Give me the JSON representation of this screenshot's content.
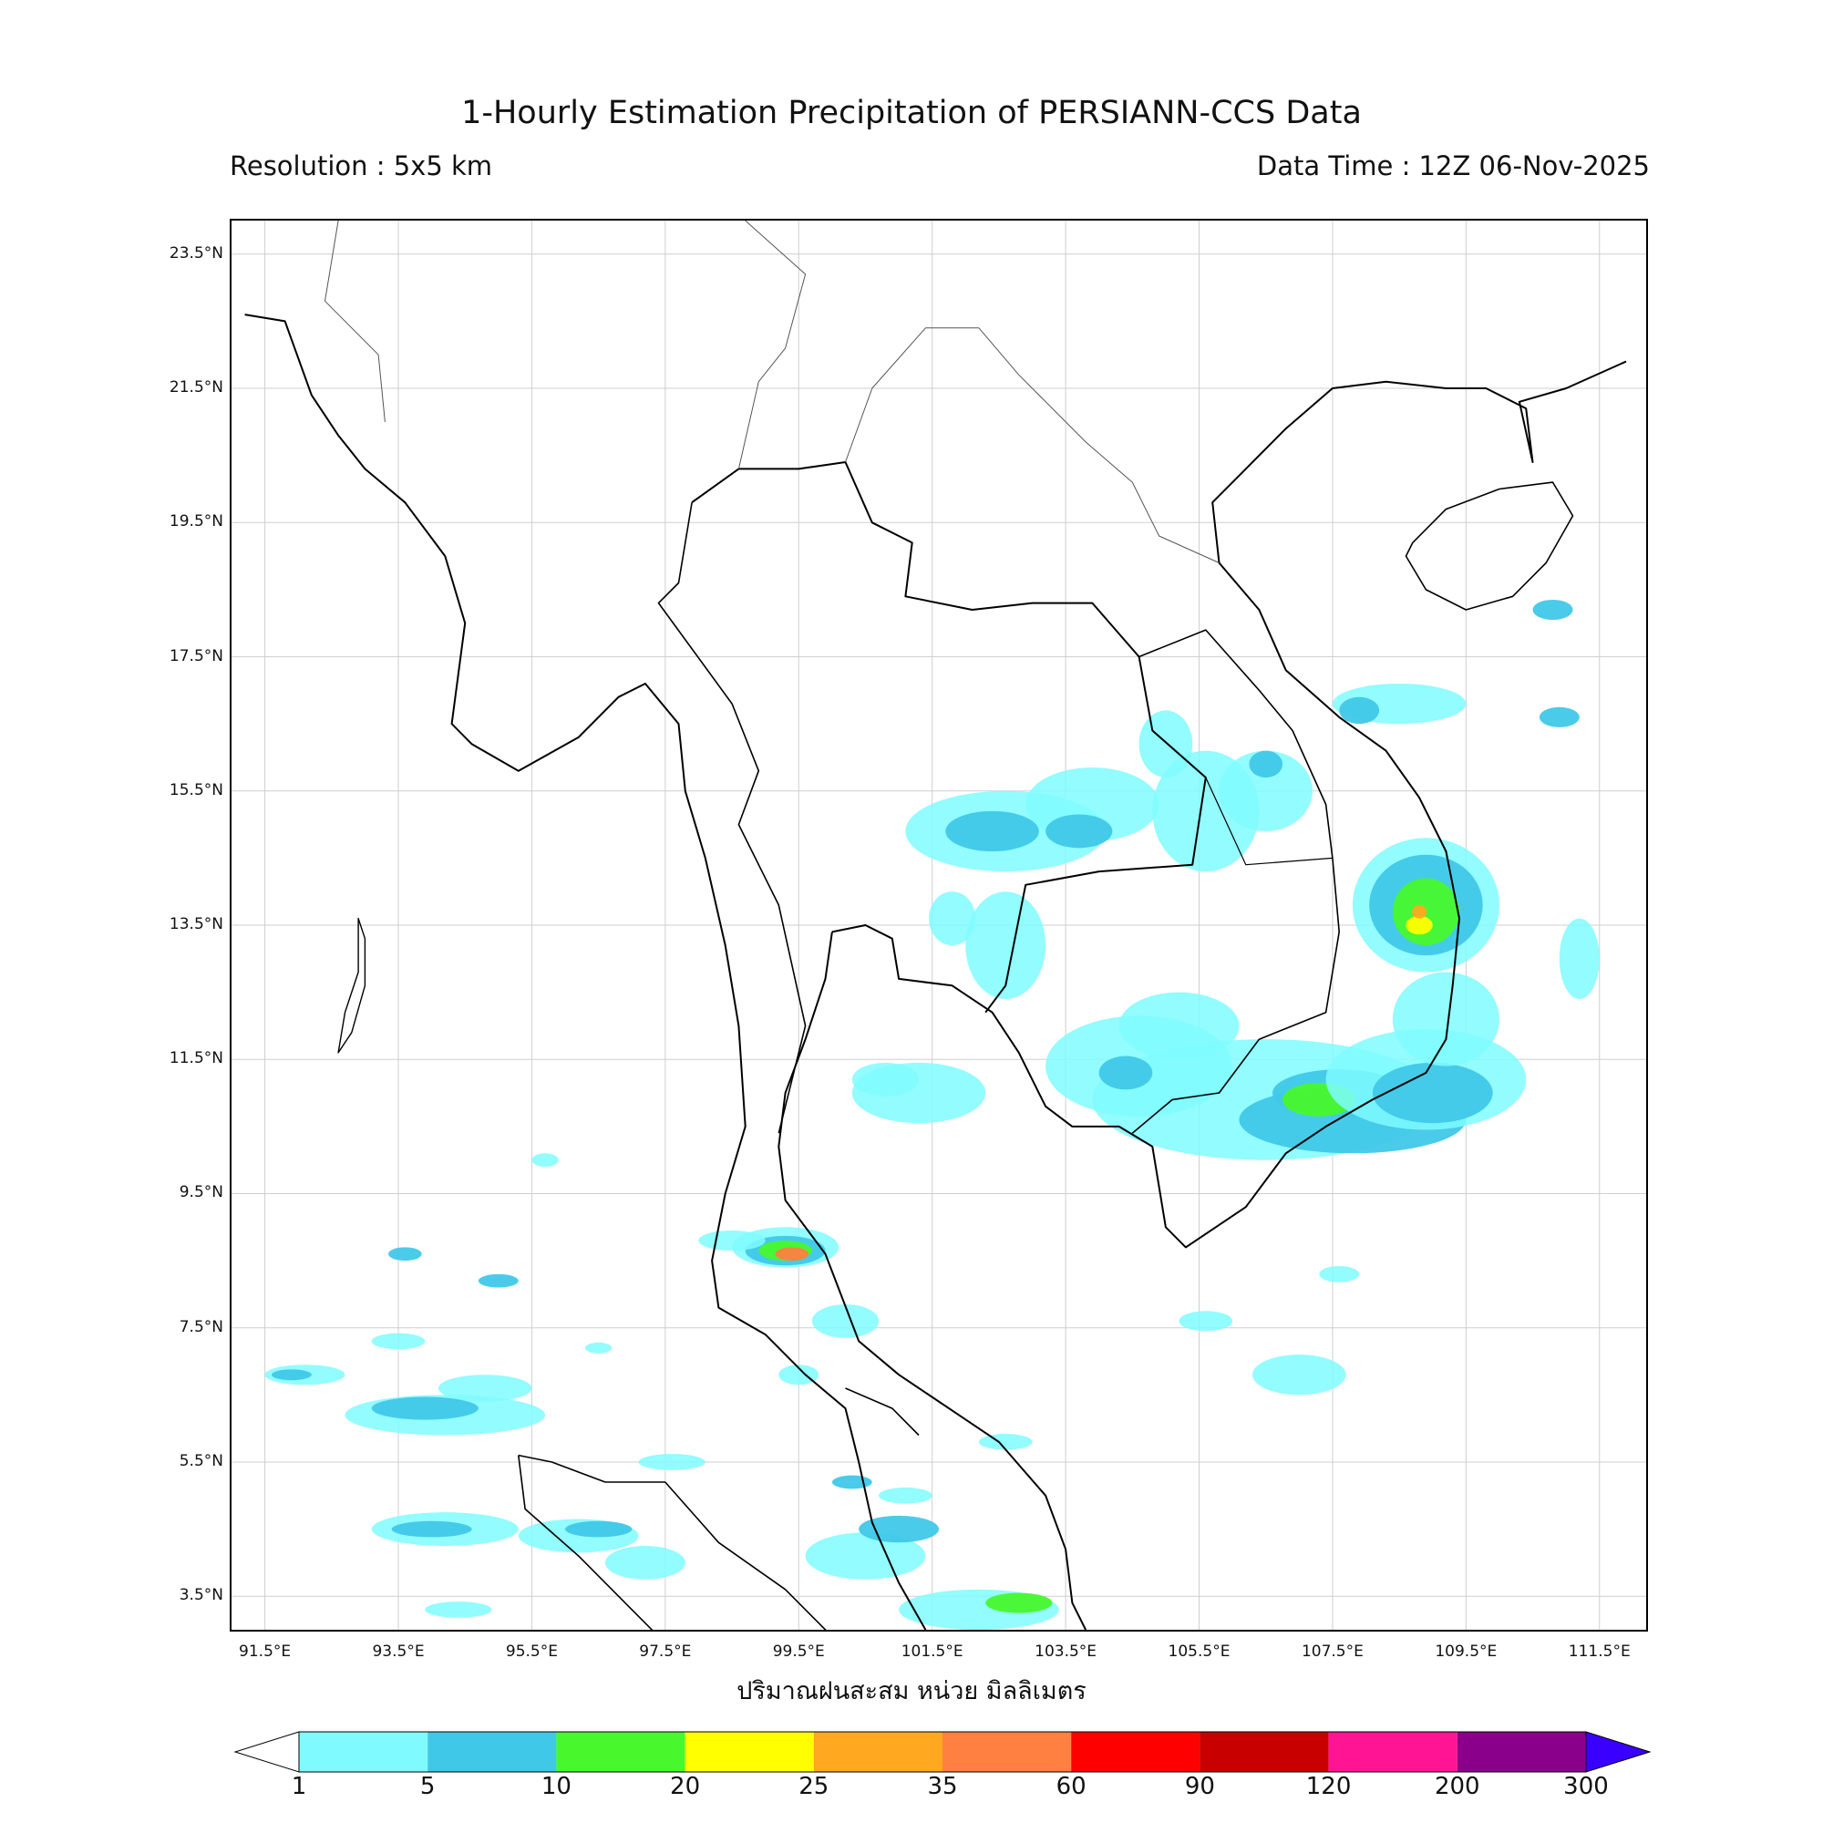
{
  "header": {
    "title": "1-Hourly Estimation Precipitation of PERSIANN-CCS Data",
    "resolution": "Resolution : 5x5 km",
    "data_time": "Data Time : 12Z 06-Nov-2025"
  },
  "axes": {
    "lat_labels": [
      "23.5°N",
      "21.5°N",
      "19.5°N",
      "17.5°N",
      "15.5°N",
      "13.5°N",
      "11.5°N",
      "9.5°N",
      "7.5°N",
      "5.5°N",
      "3.5°N"
    ],
    "lon_labels": [
      "91.5°E",
      "93.5°E",
      "95.5°E",
      "97.5°E",
      "99.5°E",
      "101.5°E",
      "103.5°E",
      "105.5°E",
      "107.5°E",
      "109.5°E",
      "111.5°E"
    ],
    "lat_range": [
      3.0,
      24.0
    ],
    "lon_range": [
      91.0,
      112.2
    ]
  },
  "unit_label": "ปริมาณฝนสะสม หน่วย มิลลิเมตร",
  "colorbar": {
    "levels": [
      "1",
      "5",
      "10",
      "20",
      "25",
      "35",
      "60",
      "90",
      "120",
      "200",
      "300"
    ],
    "colors": [
      "#7ffbff",
      "#40c8e8",
      "#48f82c",
      "#ffff00",
      "#ffa820",
      "#ff8040",
      "#ff0000",
      "#c80000",
      "#ff1493",
      "#8b008b"
    ],
    "over_color": "#3a00ff",
    "under_color": "#ffffff"
  },
  "rain_areas": [
    {
      "name": "gulf-of-thailand-central",
      "lon": 101.0,
      "lat": 10.8,
      "level": 1
    },
    {
      "name": "south-vietnam-coast",
      "lon": 108.5,
      "lat": 11.0,
      "level": 2
    },
    {
      "name": "mekong-delta",
      "lon": 107.5,
      "lat": 10.6,
      "level": 3
    },
    {
      "name": "central-vietnam-storm",
      "lon": 108.9,
      "lat": 13.6,
      "level": 5
    },
    {
      "name": "northeast-thailand-band",
      "lon": 103.2,
      "lat": 15.0,
      "level": 2
    },
    {
      "name": "southern-thailand-cell",
      "lon": 99.4,
      "lat": 8.6,
      "level": 6
    },
    {
      "name": "andaman-bands",
      "lon": 94.5,
      "lat": 6.2,
      "level": 2
    },
    {
      "name": "malacca-strait",
      "lon": 97.5,
      "lat": 4.4,
      "level": 2
    }
  ]
}
